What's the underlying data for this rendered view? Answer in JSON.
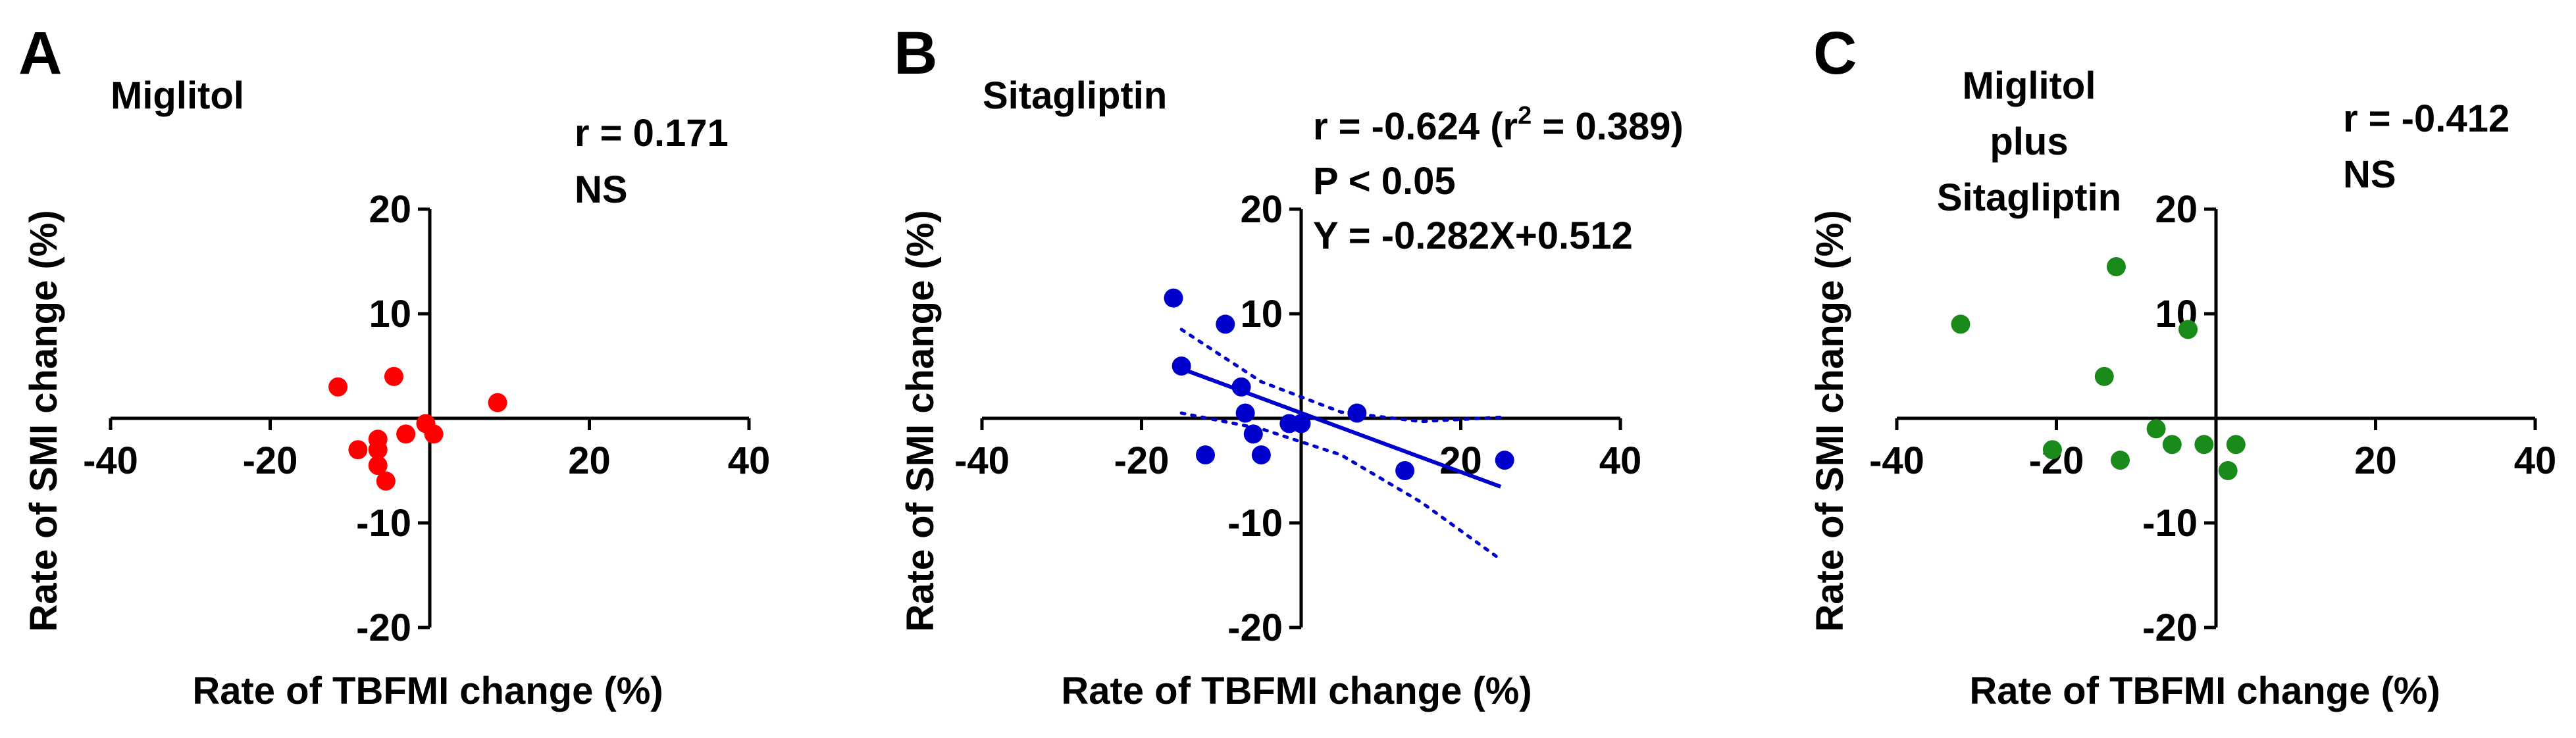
{
  "chart_data": [
    {
      "type": "scatter",
      "panel": "A",
      "title": "Miglitol",
      "xlabel": "Rate of TBFMI change (%)",
      "ylabel": "Rate of SMI change (%)",
      "xlim": [
        -40,
        40
      ],
      "ylim": [
        -20,
        20
      ],
      "x_ticks": [
        -40,
        -20,
        20,
        40
      ],
      "x_tick_labels": [
        "-40",
        "-20",
        "20",
        "40"
      ],
      "y_ticks": [
        20,
        10,
        -10,
        -20
      ],
      "y_tick_labels": [
        "20",
        "10",
        "-10",
        "-20"
      ],
      "stats": [
        "r = 0.171",
        "NS"
      ],
      "color": "#ff0000",
      "points": [
        {
          "x": -11.5,
          "y": 3.0
        },
        {
          "x": -4.5,
          "y": 4.0
        },
        {
          "x": 8.5,
          "y": 1.5
        },
        {
          "x": -9.0,
          "y": -3.0
        },
        {
          "x": -6.5,
          "y": -2.0
        },
        {
          "x": -6.5,
          "y": -3.0
        },
        {
          "x": -6.5,
          "y": -4.5
        },
        {
          "x": -5.5,
          "y": -6.0
        },
        {
          "x": -3.0,
          "y": -1.5
        },
        {
          "x": -0.5,
          "y": -0.5
        },
        {
          "x": 0.5,
          "y": -1.5
        }
      ],
      "regression": null
    },
    {
      "type": "scatter",
      "panel": "B",
      "title": "Sitagliptin",
      "xlabel": "Rate of TBFMI change (%)",
      "ylabel": "Rate of SMI change (%)",
      "xlim": [
        -40,
        40
      ],
      "ylim": [
        -20,
        20
      ],
      "x_ticks": [
        -40,
        -20,
        20,
        40
      ],
      "x_tick_labels": [
        "-40",
        "-20",
        "20",
        "40"
      ],
      "y_ticks": [
        20,
        10,
        -10,
        -20
      ],
      "y_tick_labels": [
        "20",
        "10",
        "-10",
        "-20"
      ],
      "stats": [
        "r = -0.624 (r",
        "2",
        " = 0.389)",
        "P < 0.05",
        "Y = -0.282X+0.512"
      ],
      "color": "#0000cd",
      "points": [
        {
          "x": -16.0,
          "y": 11.5
        },
        {
          "x": -9.5,
          "y": 9.0
        },
        {
          "x": -15.0,
          "y": 5.0
        },
        {
          "x": -7.5,
          "y": 3.0
        },
        {
          "x": -7.0,
          "y": 0.5
        },
        {
          "x": -6.0,
          "y": -1.5
        },
        {
          "x": -12.0,
          "y": -3.5
        },
        {
          "x": -5.0,
          "y": -3.5
        },
        {
          "x": -1.5,
          "y": -0.5
        },
        {
          "x": 0.0,
          "y": -0.5
        },
        {
          "x": 7.0,
          "y": 0.5
        },
        {
          "x": 13.0,
          "y": -5.0
        },
        {
          "x": 25.5,
          "y": -4.0
        }
      ],
      "regression": {
        "slope": -0.282,
        "intercept": 0.512,
        "x_range": [
          -15,
          25
        ],
        "ci_upper": [
          [
            -15,
            8.5
          ],
          [
            -5,
            3.5
          ],
          [
            5,
            0.6
          ],
          [
            15,
            -0.3
          ],
          [
            25,
            0.1
          ]
        ],
        "ci_lower": [
          [
            -15,
            0.5
          ],
          [
            -5,
            -1.0
          ],
          [
            5,
            -3.5
          ],
          [
            15,
            -8.0
          ],
          [
            25,
            -13.5
          ]
        ]
      }
    },
    {
      "type": "scatter",
      "panel": "C",
      "title": [
        "Miglitol",
        "plus",
        "Sitagliptin"
      ],
      "xlabel": "Rate of TBFMI change (%)",
      "ylabel": "Rate of SMI change (%)",
      "xlim": [
        -40,
        40
      ],
      "ylim": [
        -20,
        20
      ],
      "x_ticks": [
        -40,
        -20,
        20,
        40
      ],
      "x_tick_labels": [
        "-40",
        "-20",
        "20",
        "40"
      ],
      "y_ticks": [
        20,
        10,
        -10,
        -20
      ],
      "y_tick_labels": [
        "20",
        "10",
        "-10",
        "-20"
      ],
      "stats": [
        "r = -0.412",
        "NS"
      ],
      "color": "#1a8a1a",
      "points": [
        {
          "x": -32.0,
          "y": 9.0
        },
        {
          "x": -12.5,
          "y": 14.5
        },
        {
          "x": -3.5,
          "y": 8.5
        },
        {
          "x": -14.0,
          "y": 4.0
        },
        {
          "x": -20.5,
          "y": -3.0
        },
        {
          "x": -12.0,
          "y": -4.0
        },
        {
          "x": -7.5,
          "y": -1.0
        },
        {
          "x": -5.5,
          "y": -2.5
        },
        {
          "x": -1.5,
          "y": -2.5
        },
        {
          "x": 2.5,
          "y": -2.5
        },
        {
          "x": 1.5,
          "y": -5.0
        }
      ],
      "regression": null
    }
  ]
}
